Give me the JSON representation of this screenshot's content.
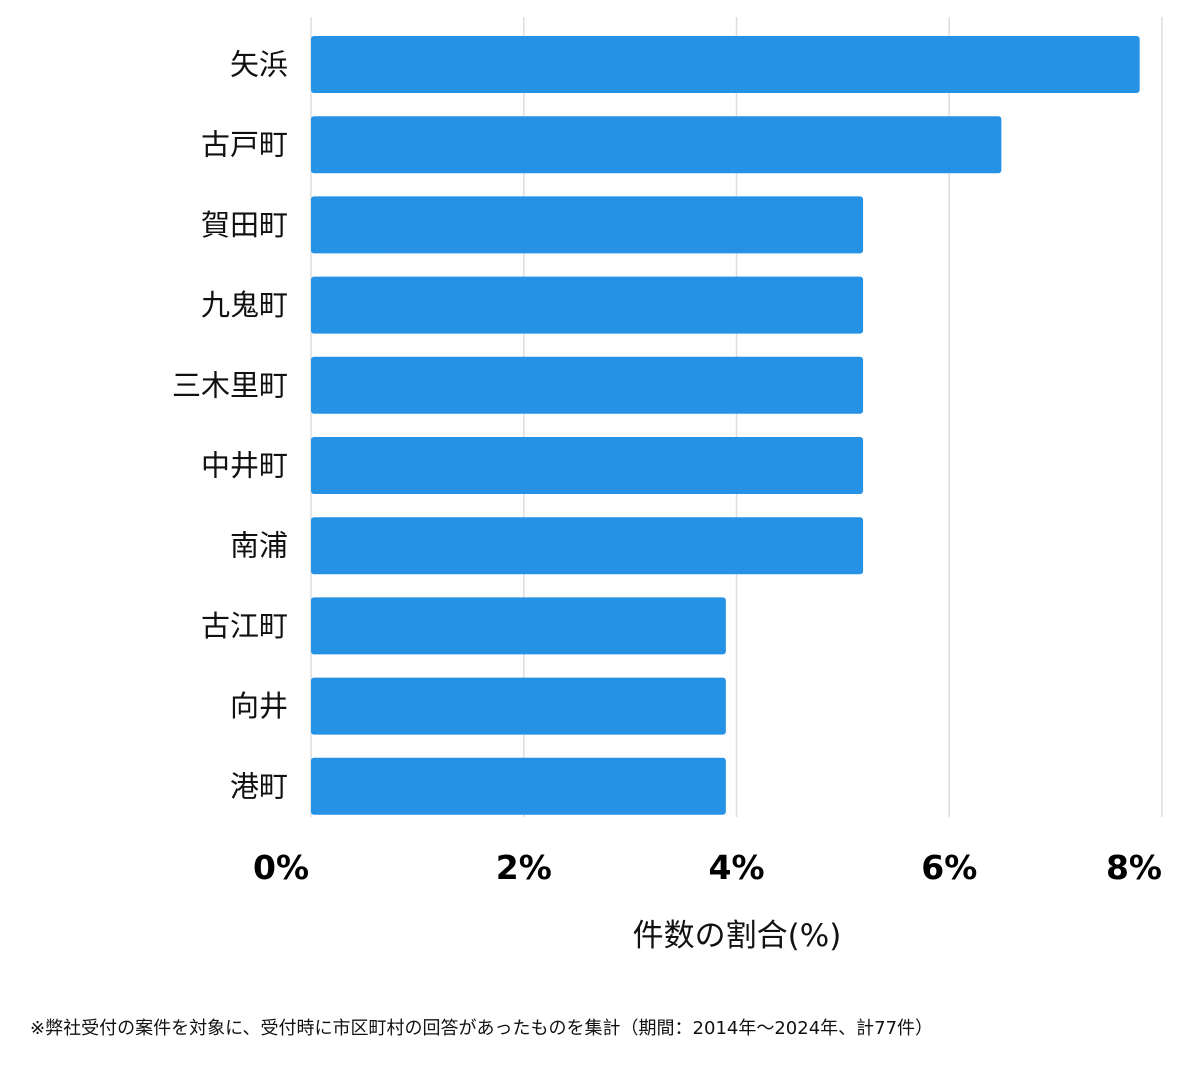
{
  "chart_data": {
    "type": "bar",
    "orientation": "horizontal",
    "categories": [
      "矢浜",
      "古戸町",
      "賀田町",
      "九鬼町",
      "三木里町",
      "中井町",
      "南浦",
      "古江町",
      "向井",
      "港町"
    ],
    "values": [
      7.79,
      6.49,
      5.19,
      5.19,
      5.19,
      5.19,
      5.19,
      3.9,
      3.9,
      3.9
    ],
    "xlim": [
      0,
      8
    ],
    "xticks": [
      0,
      2,
      4,
      6,
      8
    ],
    "xtick_labels": [
      "0%",
      "2%",
      "4%",
      "6%",
      "8%"
    ],
    "xlabel": "件数の割合(%)",
    "ylabel": "",
    "title": "",
    "grid": "vertical",
    "legend": "none",
    "bar_color": "#2592e6",
    "grid_color": "#dddddd"
  },
  "footnote": "※弊社受付の案件を対象に、受付時に市区町村の回答があったものを集計（期間：2014年～2024年、計77件）"
}
